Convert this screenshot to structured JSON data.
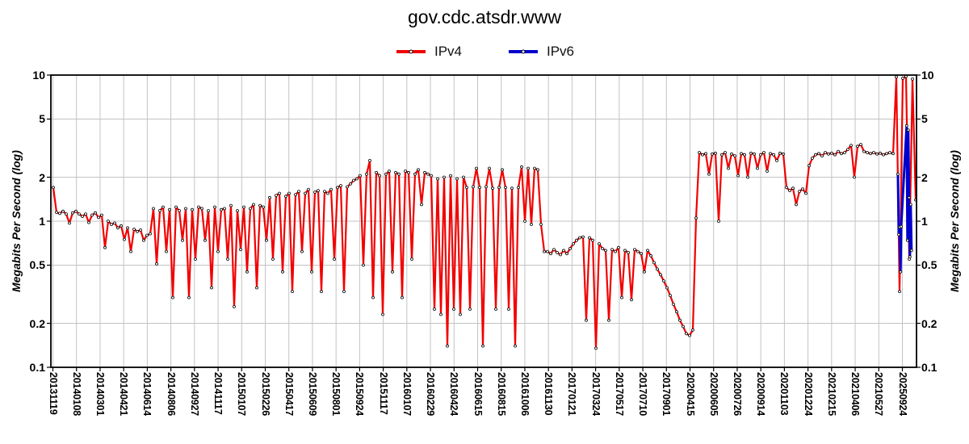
{
  "title": "gov.cdc.atsdr.www",
  "legend": [
    {
      "label": "IPv4",
      "color": "#f20000"
    },
    {
      "label": "IPv6",
      "color": "#0000cd"
    }
  ],
  "y_axis": {
    "title": "Megabits Per Second (log)",
    "tick_labels": [
      "10",
      "5",
      "2",
      "1",
      "0.5",
      "0.2",
      "0.1"
    ],
    "tick_values": [
      10,
      5,
      2,
      1,
      0.5,
      0.2,
      0.1
    ],
    "gridline_values": [
      5,
      2,
      1,
      0.5,
      0.2
    ]
  },
  "colors": {
    "grid": "#c3c3c3",
    "border": "#000000",
    "marker_fill": "#ffffff",
    "marker_stroke": "#000000",
    "background": "#ffffff"
  },
  "chart_data": {
    "type": "line",
    "title": "gov.cdc.atsdr.www",
    "ylabel": "Megabits Per Second (log)",
    "yscale": "log",
    "ylim": [
      0.1,
      10
    ],
    "grid": true,
    "legend_position": "top",
    "x_tick_labels": [
      "20131119",
      "20140108",
      "20140301",
      "20140421",
      "20140614",
      "20140806",
      "20140927",
      "20141117",
      "20150107",
      "20150226",
      "20150417",
      "20150609",
      "20150801",
      "20150924",
      "20151117",
      "20160107",
      "20160229",
      "20160424",
      "20160615",
      "20160815",
      "20161006",
      "20161130",
      "20170121",
      "20170324",
      "20170517",
      "20170710",
      "20170901",
      "20200415",
      "20200605",
      "20200726",
      "20200914",
      "20201103",
      "20201224",
      "20210215",
      "20210406",
      "20210527",
      "20250924"
    ],
    "samples_per_tick": 7.3,
    "series": [
      {
        "name": "IPv4",
        "color": "#f20000",
        "values": [
          1.7,
          1.15,
          1.13,
          1.17,
          1.12,
          0.97,
          1.14,
          1.17,
          1.12,
          1.08,
          1.12,
          0.98,
          1.1,
          1.14,
          1.06,
          1.1,
          0.66,
          1.0,
          0.95,
          0.97,
          0.9,
          0.93,
          0.75,
          0.9,
          0.62,
          0.88,
          0.85,
          0.87,
          0.74,
          0.8,
          0.82,
          1.22,
          0.51,
          1.18,
          1.25,
          0.62,
          1.2,
          0.3,
          1.25,
          1.18,
          0.74,
          1.22,
          0.3,
          1.2,
          0.55,
          1.25,
          1.22,
          0.74,
          1.18,
          0.35,
          1.25,
          0.62,
          1.2,
          1.22,
          0.55,
          1.28,
          0.26,
          1.18,
          0.64,
          1.25,
          0.45,
          1.22,
          1.3,
          0.35,
          1.28,
          1.25,
          0.74,
          1.45,
          0.55,
          1.5,
          1.55,
          0.45,
          1.48,
          1.55,
          0.33,
          1.52,
          1.6,
          0.62,
          1.55,
          1.65,
          0.45,
          1.58,
          1.62,
          0.33,
          1.6,
          1.55,
          1.65,
          0.55,
          1.7,
          1.75,
          0.33,
          1.72,
          1.8,
          1.9,
          1.95,
          2.05,
          0.5,
          2.1,
          2.6,
          0.3,
          2.15,
          2.05,
          0.23,
          2.1,
          2.2,
          0.45,
          2.15,
          2.1,
          0.3,
          2.2,
          2.15,
          0.55,
          2.1,
          2.25,
          1.3,
          2.15,
          2.1,
          2.05,
          0.25,
          1.95,
          0.23,
          2.0,
          0.14,
          2.05,
          0.25,
          1.95,
          0.23,
          2.0,
          1.7,
          0.25,
          1.72,
          2.3,
          1.7,
          0.14,
          1.72,
          2.3,
          1.68,
          0.25,
          1.7,
          2.25,
          1.7,
          0.25,
          1.68,
          0.14,
          1.7,
          2.35,
          1.0,
          2.3,
          0.95,
          2.3,
          2.25,
          0.95,
          0.62,
          0.62,
          0.6,
          0.64,
          0.61,
          0.59,
          0.63,
          0.6,
          0.65,
          0.7,
          0.74,
          0.77,
          0.78,
          0.21,
          0.77,
          0.74,
          0.135,
          0.7,
          0.65,
          0.63,
          0.21,
          0.64,
          0.62,
          0.66,
          0.3,
          0.63,
          0.61,
          0.29,
          0.64,
          0.62,
          0.6,
          0.45,
          0.63,
          0.58,
          0.52,
          0.47,
          0.43,
          0.39,
          0.35,
          0.31,
          0.27,
          0.24,
          0.21,
          0.19,
          0.17,
          0.165,
          0.18,
          1.05,
          2.95,
          2.85,
          2.9,
          2.1,
          2.88,
          2.92,
          1.0,
          2.85,
          2.95,
          2.3,
          2.88,
          2.8,
          2.05,
          2.9,
          2.85,
          2.0,
          2.92,
          2.88,
          2.3,
          2.85,
          2.95,
          2.2,
          2.9,
          2.85,
          2.6,
          2.92,
          2.88,
          1.7,
          1.62,
          1.68,
          1.3,
          1.6,
          1.66,
          1.55,
          2.4,
          2.7,
          2.85,
          2.9,
          2.8,
          2.95,
          2.88,
          2.92,
          2.85,
          3.0,
          2.9,
          2.95,
          3.1,
          3.3,
          2.0,
          3.25,
          3.35,
          3.0,
          2.95,
          2.9,
          2.95,
          2.88,
          2.92,
          2.85,
          2.9,
          2.95,
          2.9,
          9.7,
          0.33,
          9.5,
          9.8,
          0.55,
          9.4,
          1.4
        ]
      },
      {
        "name": "IPv6",
        "color": "#0000cd",
        "points": [
          [
            261.5,
            2.1
          ],
          [
            261.75,
            0.81
          ],
          [
            262.0,
            0.91
          ],
          [
            262.3,
            0.45
          ],
          [
            262.5,
            0.92
          ],
          [
            264.2,
            4.5
          ],
          [
            264.45,
            0.74
          ],
          [
            264.7,
            4.2
          ],
          [
            264.95,
            1.45
          ],
          [
            265.2,
            0.57
          ],
          [
            265.45,
            1.3
          ],
          [
            265.7,
            0.63
          ]
        ]
      }
    ]
  }
}
